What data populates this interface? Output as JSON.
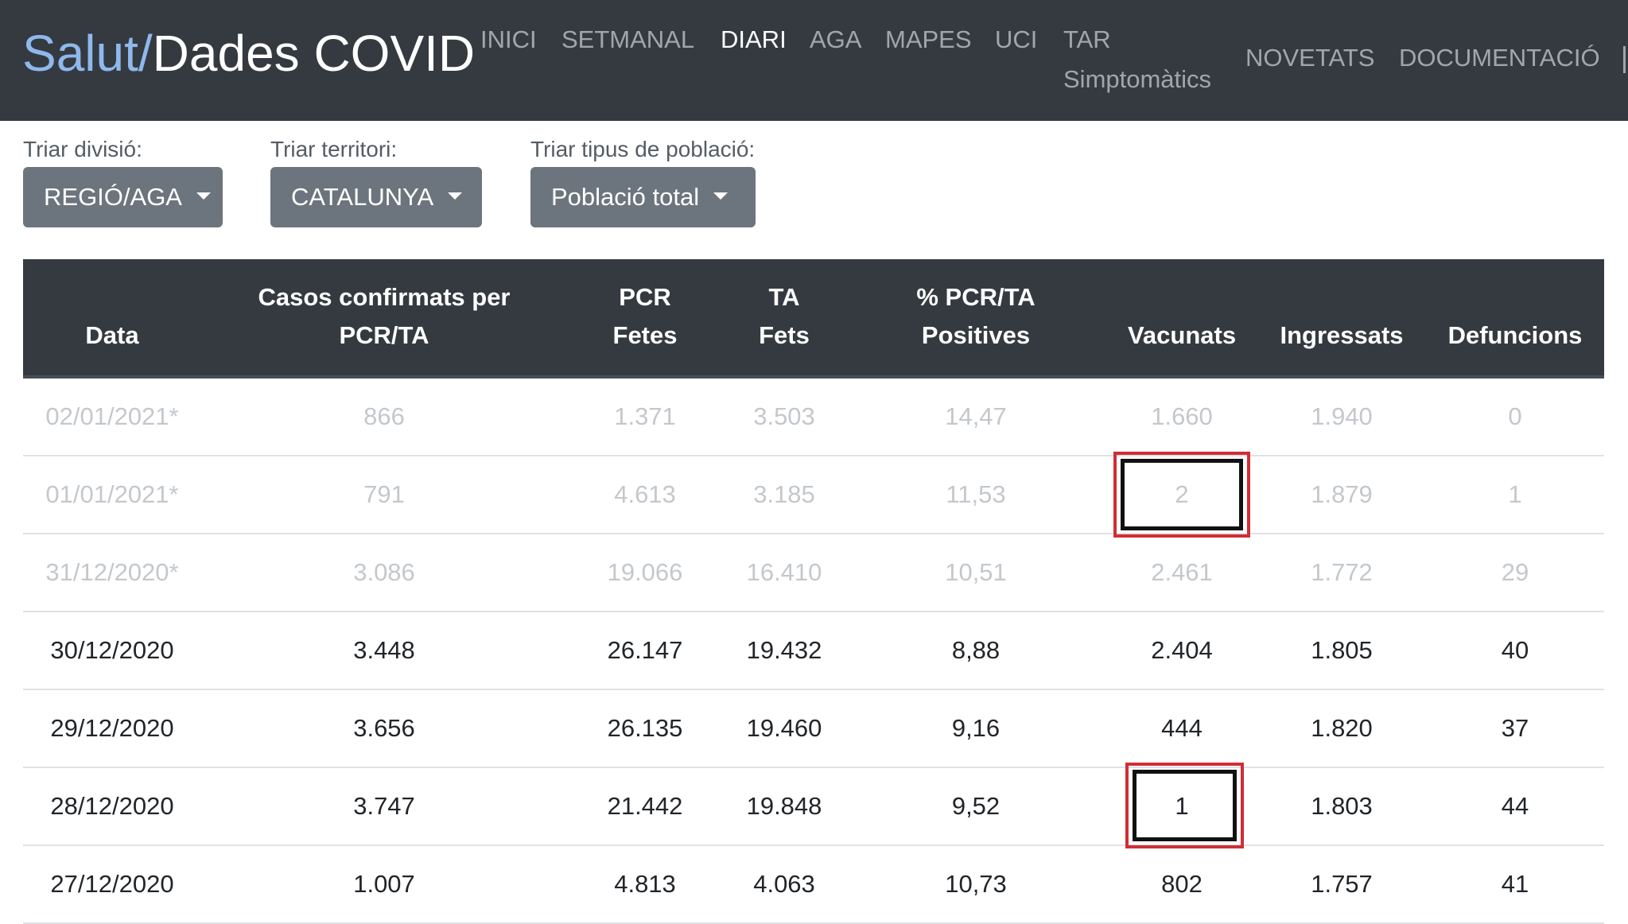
{
  "brand": {
    "part1": "Salut/",
    "part2": "Dades COVID"
  },
  "nav": {
    "inici": "INICI",
    "setmanal": "SETMANAL",
    "diari": "DIARI",
    "aga": "AGA",
    "mapes": "MAPES",
    "uci": "UCI",
    "tar_line1": "TAR",
    "tar_line2": "Simptomàtics",
    "novetats": "NOVETATS",
    "documentacio": "DOCUMENTACIÓ",
    "active": "DIARI"
  },
  "filters": {
    "divisio": {
      "label": "Triar divisió:",
      "value": "REGIÓ/AGA"
    },
    "territori": {
      "label": "Triar territori:",
      "value": "CATALUNYA"
    },
    "poblacio": {
      "label": "Triar tipus de població:",
      "value": "Població total"
    }
  },
  "table": {
    "headers": {
      "data": "Data",
      "casos_l1": "Casos confirmats per",
      "casos_l2": "PCR/TA",
      "pcr_l1": "PCR",
      "pcr_l2": "Fetes",
      "ta_l1": "TA",
      "ta_l2": "Fets",
      "pos_l1": "% PCR/TA",
      "pos_l2": "Positives",
      "vacunats": "Vacunats",
      "ingressats": "Ingressats",
      "defuncions": "Defuncions"
    },
    "rows": [
      {
        "data": "02/01/2021*",
        "casos": "866",
        "pcr": "1.371",
        "ta": "3.503",
        "pos": "14,47",
        "vac": "1.660",
        "ing": "1.940",
        "def": "0"
      },
      {
        "data": "01/01/2021*",
        "casos": "791",
        "pcr": "4.613",
        "ta": "3.185",
        "pos": "11,53",
        "vac": "2",
        "ing": "1.879",
        "def": "1"
      },
      {
        "data": "31/12/2020*",
        "casos": "3.086",
        "pcr": "19.066",
        "ta": "16.410",
        "pos": "10,51",
        "vac": "2.461",
        "ing": "1.772",
        "def": "29"
      },
      {
        "data": "30/12/2020",
        "casos": "3.448",
        "pcr": "26.147",
        "ta": "19.432",
        "pos": "8,88",
        "vac": "2.404",
        "ing": "1.805",
        "def": "40"
      },
      {
        "data": "29/12/2020",
        "casos": "3.656",
        "pcr": "26.135",
        "ta": "19.460",
        "pos": "9,16",
        "vac": "444",
        "ing": "1.820",
        "def": "37"
      },
      {
        "data": "28/12/2020",
        "casos": "3.747",
        "pcr": "21.442",
        "ta": "19.848",
        "pos": "9,52",
        "vac": "1",
        "ing": "1.803",
        "def": "44"
      },
      {
        "data": "27/12/2020",
        "casos": "1.007",
        "pcr": "4.813",
        "ta": "4.063",
        "pos": "10,73",
        "vac": "802",
        "ing": "1.757",
        "def": "41"
      }
    ]
  },
  "colors": {
    "navbar_bg": "#343a40",
    "brand_accent": "#8fb8ec",
    "dropdown_bg": "#6c757d",
    "highlight_outline": "#d12d35"
  }
}
